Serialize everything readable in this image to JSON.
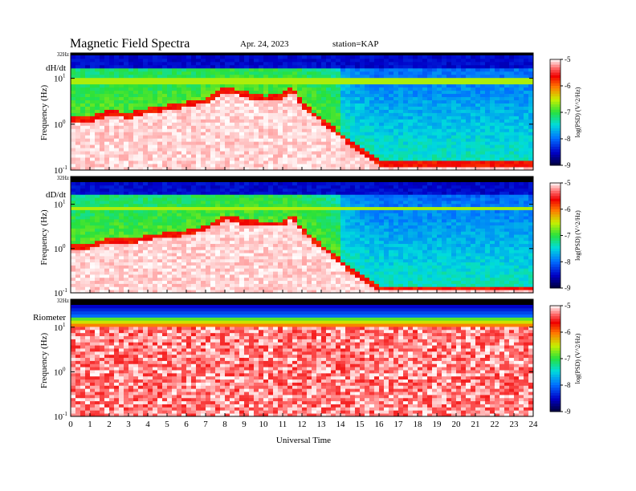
{
  "header": {
    "title": "Magnetic  Field  Spectra",
    "date": "Apr. 24, 2023",
    "station": "station=KAP"
  },
  "chart_data": [
    {
      "type": "heatmap",
      "panel_label": "dH/dt",
      "ylabel": "Frequency  (Hz)",
      "xlabel": "",
      "nyquist_label": "32Hz",
      "x": [
        0,
        24
      ],
      "y_log_range": [
        -1,
        1.5
      ],
      "yticks": [
        {
          "label": "10",
          "exp": "-1",
          "value": 0.1
        },
        {
          "label": "10",
          "exp": "0",
          "value": 1
        },
        {
          "label": "10",
          "exp": "1",
          "value": 10
        }
      ],
      "xticks": [
        "0",
        "1",
        "2",
        "3",
        "4",
        "5",
        "6",
        "7",
        "8",
        "9",
        "10",
        "11",
        "12",
        "13",
        "14",
        "15",
        "16",
        "17",
        "18",
        "19",
        "20",
        "21",
        "22",
        "23",
        "24"
      ],
      "color_scale": {
        "label": "log(PSD) (V^2/Hz)",
        "ticks": [
          "-5",
          "-6",
          "-7",
          "-8",
          "-9"
        ],
        "min": -9,
        "max": -5
      },
      "ridge_log_freq": [
        [
          0,
          0.05
        ],
        [
          1,
          0.05
        ],
        [
          2,
          0.2
        ],
        [
          3,
          0.12
        ],
        [
          4,
          0.25
        ],
        [
          5,
          0.3
        ],
        [
          6,
          0.38
        ],
        [
          7,
          0.45
        ],
        [
          8,
          0.7
        ],
        [
          9,
          0.6
        ],
        [
          10,
          0.5
        ],
        [
          11,
          0.55
        ],
        [
          11.5,
          0.75
        ],
        [
          12,
          0.35
        ],
        [
          13,
          0.05
        ],
        [
          14,
          -0.3
        ],
        [
          15,
          -0.6
        ],
        [
          16,
          -0.9
        ],
        [
          24,
          -0.9
        ]
      ],
      "band_log_freq": 0.95,
      "type_profile": "magnetometer_dH"
    },
    {
      "type": "heatmap",
      "panel_label": "dD/dt",
      "ylabel": "Frequency  (Hz)",
      "xlabel": "",
      "nyquist_label": "32Hz",
      "x": [
        0,
        24
      ],
      "y_log_range": [
        -1,
        1.5
      ],
      "yticks": [
        {
          "label": "10",
          "exp": "-1",
          "value": 0.1
        },
        {
          "label": "10",
          "exp": "0",
          "value": 1
        },
        {
          "label": "10",
          "exp": "1",
          "value": 10
        }
      ],
      "xticks": [
        "0",
        "1",
        "2",
        "3",
        "4",
        "5",
        "6",
        "7",
        "8",
        "9",
        "10",
        "11",
        "12",
        "13",
        "14",
        "15",
        "16",
        "17",
        "18",
        "19",
        "20",
        "21",
        "22",
        "23",
        "24"
      ],
      "color_scale": {
        "label": "log(PSD) (V^2/Hz)",
        "ticks": [
          "-5",
          "-6",
          "-7",
          "-8",
          "-9"
        ],
        "min": -9,
        "max": -5
      },
      "ridge_log_freq": [
        [
          0,
          0.0
        ],
        [
          1,
          0.0
        ],
        [
          2,
          0.15
        ],
        [
          3,
          0.1
        ],
        [
          4,
          0.2
        ],
        [
          5,
          0.25
        ],
        [
          6,
          0.3
        ],
        [
          7,
          0.4
        ],
        [
          8,
          0.65
        ],
        [
          9,
          0.55
        ],
        [
          10,
          0.5
        ],
        [
          11,
          0.5
        ],
        [
          11.5,
          0.7
        ],
        [
          12,
          0.35
        ],
        [
          13,
          0.0
        ],
        [
          14,
          -0.35
        ],
        [
          15,
          -0.7
        ],
        [
          16,
          -0.95
        ],
        [
          24,
          -0.95
        ]
      ],
      "band_log_freq": 0.9,
      "type_profile": "magnetometer_dD"
    },
    {
      "type": "heatmap",
      "panel_label": "Riometer",
      "ylabel": "Frequency  (Hz)",
      "xlabel": "Universal  Time",
      "nyquist_label": "32Hz",
      "x": [
        0,
        24
      ],
      "y_log_range": [
        -1,
        1.5
      ],
      "yticks": [
        {
          "label": "10",
          "exp": "-1",
          "value": 0.1
        },
        {
          "label": "10",
          "exp": "0",
          "value": 1
        },
        {
          "label": "10",
          "exp": "1",
          "value": 10
        }
      ],
      "xticks": [
        "0",
        "1",
        "2",
        "3",
        "4",
        "5",
        "6",
        "7",
        "8",
        "9",
        "10",
        "11",
        "12",
        "13",
        "14",
        "15",
        "16",
        "17",
        "18",
        "19",
        "20",
        "21",
        "22",
        "23",
        "24"
      ],
      "color_scale": {
        "label": "log(PSD) (V^2/Hz)",
        "ticks": [
          "-5",
          "-6",
          "-7",
          "-8",
          "-9"
        ],
        "min": -9,
        "max": -5
      },
      "ridge_log_freq": [],
      "band_log_freq": 1.0,
      "type_profile": "riometer"
    }
  ]
}
